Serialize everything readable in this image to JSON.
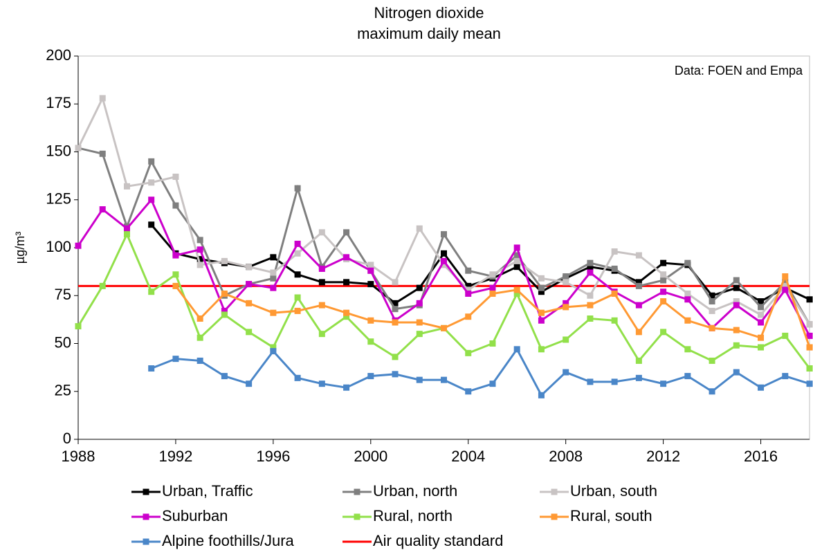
{
  "chart_data": {
    "type": "line",
    "title": "Nitrogen dioxide",
    "subtitle": "maximum daily mean",
    "annotation": "Data: FOEN and Empa",
    "ylabel": "µg/m³",
    "x": [
      1988,
      1989,
      1990,
      1991,
      1992,
      1993,
      1994,
      1995,
      1996,
      1997,
      1998,
      1999,
      2000,
      2001,
      2002,
      2003,
      2004,
      2005,
      2006,
      2007,
      2008,
      2009,
      2010,
      2011,
      2012,
      2013,
      2014,
      2015,
      2016,
      2017,
      2018
    ],
    "xlim": [
      1988,
      2018
    ],
    "xticks": [
      1988,
      1992,
      1996,
      2000,
      2004,
      2008,
      2012,
      2016
    ],
    "ylim": [
      0,
      200
    ],
    "yticks": [
      0,
      25,
      50,
      75,
      100,
      125,
      150,
      175,
      200
    ],
    "series": [
      {
        "name": "Urban, Traffic",
        "color": "#000000",
        "values": [
          null,
          null,
          null,
          112,
          97,
          94,
          92,
          90,
          95,
          86,
          82,
          82,
          81,
          71,
          79,
          97,
          80,
          84,
          90,
          77,
          84,
          90,
          88,
          82,
          92,
          91,
          75,
          79,
          72,
          79,
          73
        ]
      },
      {
        "name": "Urban, north",
        "color": "#7f7f7f",
        "values": [
          152,
          149,
          111,
          145,
          122,
          104,
          75,
          81,
          84,
          131,
          90,
          108,
          88,
          68,
          70,
          107,
          88,
          85,
          96,
          79,
          85,
          92,
          89,
          80,
          83,
          92,
          72,
          83,
          69,
          82,
          60
        ]
      },
      {
        "name": "Urban, south",
        "color": "#c8c3c3",
        "values": [
          152,
          178,
          132,
          134,
          137,
          91,
          93,
          90,
          87,
          97,
          108,
          94,
          91,
          82,
          110,
          91,
          78,
          86,
          93,
          84,
          82,
          75,
          98,
          96,
          86,
          76,
          67,
          72,
          65,
          80,
          60
        ]
      },
      {
        "name": "Suburban",
        "color": "#cc00cc",
        "values": [
          101,
          120,
          110,
          125,
          96,
          99,
          67,
          81,
          79,
          102,
          89,
          95,
          88,
          62,
          71,
          93,
          76,
          79,
          100,
          62,
          71,
          87,
          77,
          70,
          77,
          73,
          58,
          70,
          61,
          78,
          54
        ]
      },
      {
        "name": "Rural, north",
        "color": "#92e04a",
        "values": [
          59,
          80,
          107,
          77,
          86,
          53,
          65,
          56,
          48,
          74,
          55,
          64,
          51,
          43,
          55,
          58,
          45,
          50,
          76,
          47,
          52,
          63,
          62,
          41,
          56,
          47,
          41,
          49,
          48,
          54,
          37
        ]
      },
      {
        "name": "Rural, south",
        "color": "#ff9933",
        "values": [
          null,
          null,
          null,
          null,
          80,
          63,
          76,
          71,
          66,
          67,
          70,
          66,
          62,
          61,
          61,
          58,
          64,
          76,
          78,
          66,
          69,
          70,
          76,
          56,
          72,
          62,
          58,
          57,
          53,
          85,
          48
        ]
      },
      {
        "name": "Alpine foothills/Jura",
        "color": "#4a86c8",
        "values": [
          null,
          null,
          null,
          37,
          42,
          41,
          33,
          29,
          46,
          32,
          29,
          27,
          33,
          34,
          31,
          31,
          25,
          29,
          47,
          23,
          35,
          30,
          30,
          32,
          29,
          33,
          25,
          35,
          27,
          33,
          29
        ]
      }
    ],
    "reference_line": {
      "name": "Air quality standard",
      "value": 80,
      "color": "#ff0000"
    }
  }
}
